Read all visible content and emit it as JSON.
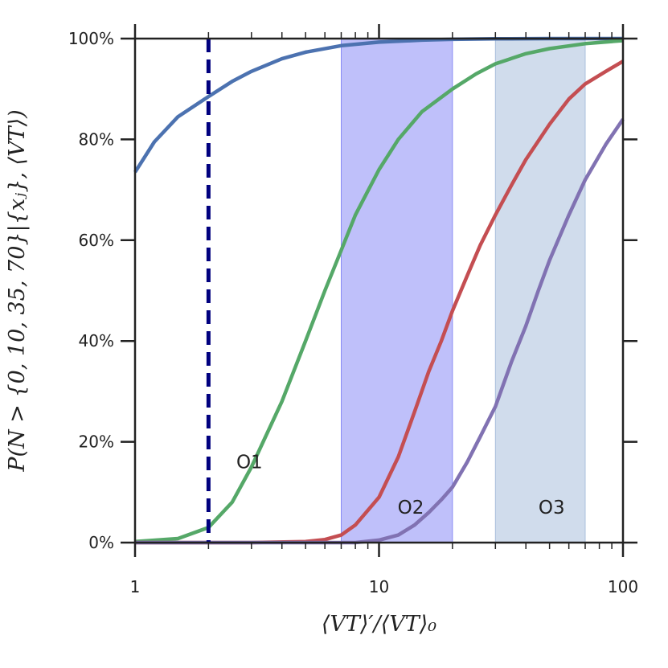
{
  "chart_data": {
    "type": "line",
    "x_scale": "log",
    "xlim": [
      1,
      100
    ],
    "ylim": [
      0,
      100
    ],
    "xlabel": "⟨VT⟩′/⟨VT⟩₀",
    "ylabel": "P(N > {0, 10, 35, 70}|{xⱼ}, ⟨VT⟩)",
    "x_ticks": [
      {
        "value": 1,
        "label": "1"
      },
      {
        "value": 10,
        "label": "10"
      },
      {
        "value": 100,
        "label": "100"
      }
    ],
    "y_ticks": [
      {
        "value": 0,
        "label": "0%"
      },
      {
        "value": 20,
        "label": "20%"
      },
      {
        "value": 40,
        "label": "40%"
      },
      {
        "value": 60,
        "label": "60%"
      },
      {
        "value": 80,
        "label": "80%"
      },
      {
        "value": 100,
        "label": "100%"
      }
    ],
    "series": [
      {
        "name": "N > 0",
        "color": "#4c72b0",
        "x": [
          1,
          1.2,
          1.5,
          2,
          2.5,
          3,
          4,
          5,
          7,
          10,
          15,
          20,
          30,
          50,
          100
        ],
        "y": [
          73.5,
          79.5,
          84.5,
          88.5,
          91.5,
          93.5,
          96,
          97.3,
          98.6,
          99.3,
          99.7,
          99.85,
          99.95,
          100,
          100
        ]
      },
      {
        "name": "N > 10",
        "color": "#55a868",
        "x": [
          1,
          1.5,
          2,
          2.5,
          3,
          4,
          5,
          6,
          7,
          8,
          10,
          12,
          15,
          20,
          25,
          30,
          40,
          50,
          70,
          100
        ],
        "y": [
          0.2,
          0.8,
          3,
          8,
          15,
          28,
          40,
          50,
          58,
          65,
          74,
          80,
          85.5,
          90,
          93,
          95,
          97,
          98,
          99,
          99.6
        ]
      },
      {
        "name": "N > 35",
        "color": "#c44e52",
        "x": [
          1,
          3,
          5,
          6,
          7,
          8,
          10,
          12,
          14,
          16,
          18,
          20,
          23,
          26,
          30,
          35,
          40,
          50,
          60,
          70,
          85,
          100
        ],
        "y": [
          0,
          0,
          0.2,
          0.6,
          1.5,
          3.5,
          9,
          17,
          26,
          34,
          40,
          46,
          53,
          59,
          65,
          71,
          76,
          83,
          88,
          91,
          93.5,
          95.5
        ]
      },
      {
        "name": "N > 70",
        "color": "#8172b2",
        "x": [
          1,
          8,
          10,
          12,
          14,
          16,
          18,
          20,
          23,
          26,
          30,
          35,
          40,
          45,
          50,
          60,
          70,
          85,
          100
        ],
        "y": [
          0,
          0,
          0.5,
          1.5,
          3.5,
          6,
          8.5,
          11,
          16,
          21,
          27,
          36,
          43,
          50,
          56,
          65,
          72,
          79,
          84
        ]
      }
    ],
    "bands": [
      {
        "label": "O2",
        "x0": 7,
        "x1": 20,
        "color": "#8a8cf5",
        "alpha": 0.55,
        "label_x": 13.5,
        "label_y": 7
      },
      {
        "label": "O3",
        "x0": 30,
        "x1": 70,
        "color": "#a9bfdc",
        "alpha": 0.55,
        "label_x": 51,
        "label_y": 7
      }
    ],
    "annotations": [
      {
        "text": "O1",
        "x": 2.6,
        "y": 16
      }
    ],
    "vline": {
      "x": 2,
      "color": "#00007f",
      "style": "dashed"
    },
    "grid": false,
    "legend": "none"
  }
}
